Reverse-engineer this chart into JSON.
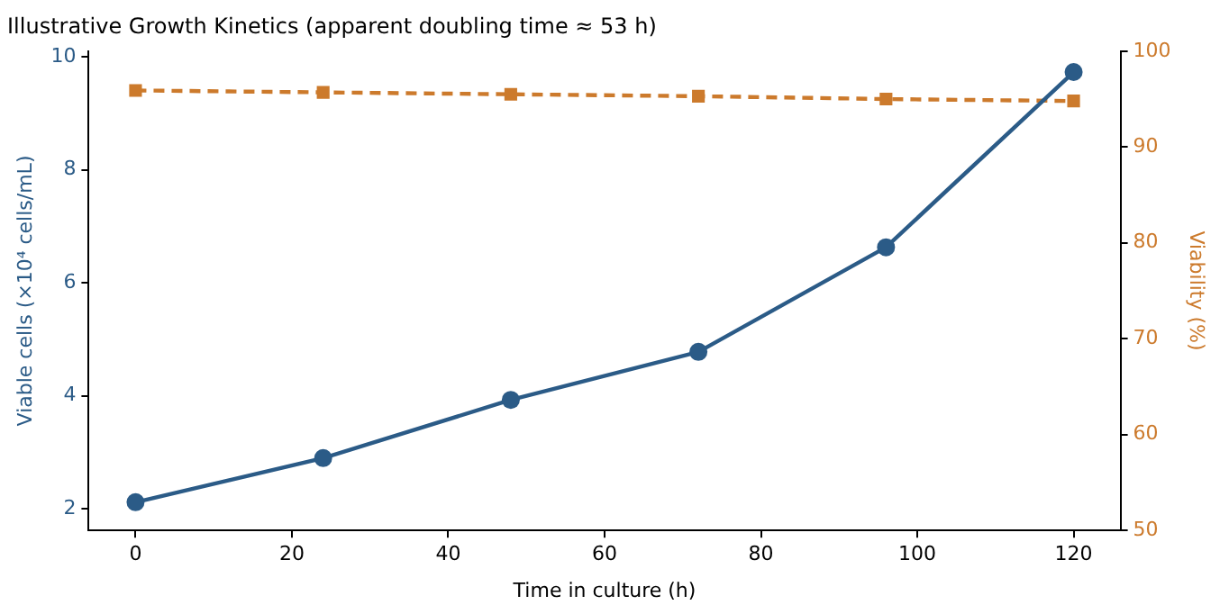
{
  "chart_data": {
    "type": "line",
    "title": "Illustrative Growth Kinetics (apparent doubling time ≈ 53 h)",
    "xlabel": "Time in culture (h)",
    "ylabel": "Viable cells (×10⁴ cells/mL)",
    "y2label": "Viability (%)",
    "x": [
      0,
      24,
      48,
      72,
      96,
      120
    ],
    "series": [
      {
        "name": null,
        "color": "#2b5b87",
        "values": [
          2.12,
          2.9,
          3.93,
          4.78,
          6.63,
          9.73
        ],
        "marker": "circle",
        "line_style": "solid"
      },
      {
        "name": null,
        "color": "#cc7a2c",
        "values": [
          95.9,
          95.7,
          95.5,
          95.3,
          95.0,
          94.8
        ],
        "marker": "square",
        "line_style": "dashed",
        "axis": "y2"
      }
    ],
    "xlim": [
      -6,
      126
    ],
    "xticks": [
      0,
      20,
      40,
      60,
      80,
      100,
      120
    ],
    "ylim": [
      1.62,
      10.1
    ],
    "yticks": [
      2,
      4,
      6,
      8,
      10
    ],
    "y2lim": [
      50,
      100
    ],
    "y2ticks": [
      50,
      60,
      70,
      80,
      90,
      100
    ],
    "grid": false,
    "legend": false
  }
}
